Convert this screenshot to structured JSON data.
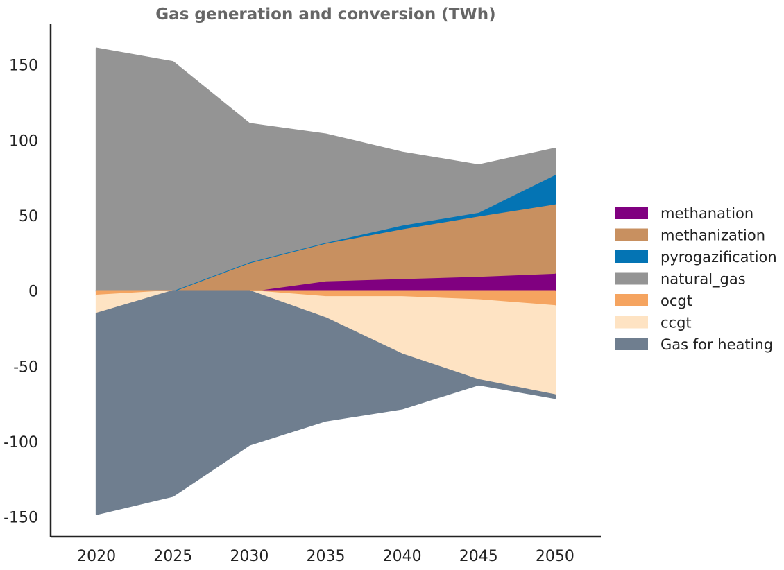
{
  "chart_data": {
    "type": "area",
    "title": "Gas generation and conversion (TWh)",
    "xlabel": "",
    "ylabel": "",
    "x": [
      2020,
      2025,
      2030,
      2035,
      2040,
      2045,
      2050
    ],
    "xlim": [
      2017,
      2053
    ],
    "ylim": [
      -163,
      177
    ],
    "yticks": [
      -150,
      -100,
      -50,
      0,
      50,
      100,
      150
    ],
    "grid": false,
    "legend_position": "right",
    "positive_stack": [
      {
        "name": "methanation",
        "color": "#800080",
        "values": [
          0,
          0,
          0,
          7,
          8.5,
          10,
          12
        ]
      },
      {
        "name": "methanization",
        "color": "#c89060",
        "values": [
          0,
          0,
          19,
          25,
          33,
          40,
          46
        ]
      },
      {
        "name": "pyrogazification",
        "color": "#0474b4",
        "values": [
          0.5,
          0.5,
          0.5,
          0.5,
          2.5,
          2.5,
          19.5
        ]
      },
      {
        "name": "natural_gas",
        "color": "#949494",
        "values": [
          160.5,
          151.5,
          91.5,
          71.5,
          48,
          31,
          17
        ]
      }
    ],
    "negative_stack": [
      {
        "name": "ocgt",
        "color": "#f5a460",
        "values": [
          -3,
          0,
          0,
          -4,
          -4,
          -6,
          -10
        ]
      },
      {
        "name": "ccgt",
        "color": "#fee3c3",
        "values": [
          -12,
          0,
          0,
          -14,
          -38,
          -53,
          -59
        ]
      },
      {
        "name": "Gas for heating",
        "color": "#6f7e8f",
        "values": [
          -133,
          -136,
          -102,
          -68,
          -36,
          -3,
          -2
        ]
      }
    ],
    "legend_order": [
      "methanation",
      "methanization",
      "pyrogazification",
      "natural_gas",
      "ocgt",
      "ccgt",
      "Gas for heating"
    ]
  }
}
